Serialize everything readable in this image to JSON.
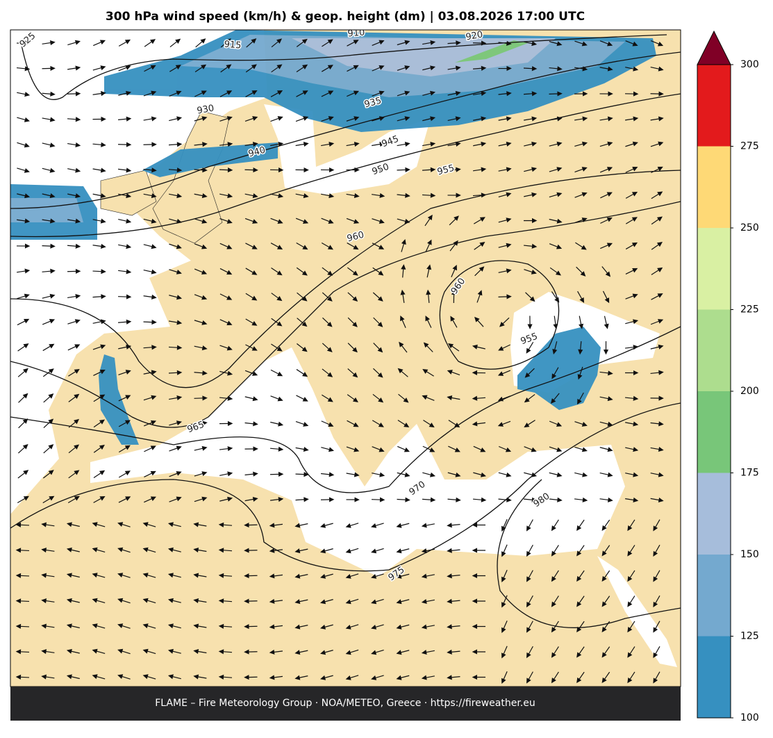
{
  "title": "300 hPa wind speed (km/h) & geop. height (dm)  |  03.08.2026 17:00 UTC",
  "footer": "FLAME – Fire Meteorology Group · NOA/METEO, Greece · https://fireweather.eu",
  "colorbar": {
    "ticks": [
      100,
      125,
      150,
      175,
      200,
      225,
      250,
      275,
      300
    ],
    "colors": [
      "#3690c0",
      "#74a9cf",
      "#a6bddb",
      "#78c679",
      "#addd8e",
      "#d9f0a3",
      "#fed976",
      "#e31a1c"
    ],
    "extend_color": "#800026"
  },
  "contour_labels": [
    925,
    915,
    910,
    920,
    930,
    935,
    940,
    945,
    950,
    955,
    960,
    960,
    955,
    965,
    970,
    975,
    980
  ]
}
